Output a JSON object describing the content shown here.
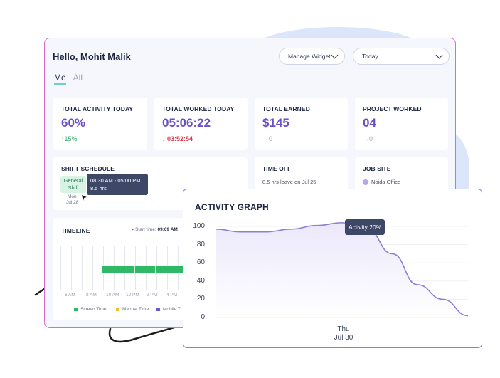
{
  "header": {
    "greeting": "Hello, Mohit Malik",
    "manage_widget": "Manage Widget",
    "date_range": "Today"
  },
  "tabs": [
    {
      "label": "Me",
      "active": true
    },
    {
      "label": "All",
      "active": false
    }
  ],
  "stats": [
    {
      "title": "TOTAL ACTIVITY TODAY",
      "value": "60%",
      "change": "15%",
      "trend": "up"
    },
    {
      "title": "TOTAL WORKED TODAY",
      "value": "05:06:22",
      "change": "03:52:54",
      "trend": "down"
    },
    {
      "title": "TOTAL EARNED",
      "value": "$145",
      "change": "0",
      "trend": "flat"
    },
    {
      "title": "PROJECT WORKED",
      "value": "04",
      "change": "0",
      "trend": "flat"
    }
  ],
  "shift": {
    "title": "SHIFT SCHEDULE",
    "badge_line1": "General",
    "badge_line2": "Shift",
    "day": "Mon",
    "date": "Jul 28",
    "tooltip_time": "08:30 AM - 05:00 PM",
    "tooltip_hours": "8.5 hrs"
  },
  "time_off": {
    "title": "TIME OFF",
    "text": "8.5 hrs leave on Jul 25."
  },
  "job_site": {
    "title": "JOB SITE",
    "location": "Noida Office"
  },
  "timeline": {
    "title": "TIMELINE",
    "start_label": "Start time:",
    "start_value": "09:09 AM",
    "ticks": [
      "6 AM",
      "8 AM",
      "10 AM",
      "12 PM",
      "2 PM",
      "4 PM"
    ],
    "legend": [
      {
        "label": "Screen Time",
        "color": "#2fb866"
      },
      {
        "label": "Manual Time",
        "color": "#f0c02f"
      },
      {
        "label": "Mobile Ti",
        "color": "#6b56d6"
      }
    ]
  },
  "activity_graph": {
    "title": "ACTIVITY GRAPH",
    "tooltip": "Activity 20%",
    "x_day": "Thu",
    "x_date": "Jul 30"
  },
  "chart_data": {
    "type": "area",
    "title": "ACTIVITY GRAPH",
    "y_ticks": [
      100,
      80,
      60,
      40,
      20,
      0
    ],
    "ylim": [
      0,
      100
    ],
    "x": [
      0,
      1,
      2,
      3,
      4,
      5,
      6,
      7,
      8,
      9,
      10
    ],
    "values": [
      97,
      94,
      94,
      97,
      101,
      104,
      97,
      70,
      36,
      20,
      2
    ],
    "x_labels": [
      "Thu Jul 30"
    ],
    "color": "#8f7ed8",
    "grid": true
  }
}
